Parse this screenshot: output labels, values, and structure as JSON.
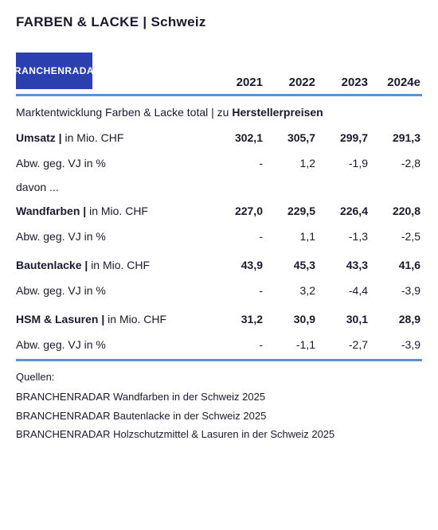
{
  "title": "FARBEN & LACKE | Schweiz",
  "logo_text": "BRANCHENRADAR",
  "years": [
    "2021",
    "2022",
    "2023",
    "2024e"
  ],
  "subtitle_pre": "Marktentwicklung Farben & Lacke total | zu ",
  "subtitle_emph": "Herstellerpreisen",
  "abw_label": "Abw. geg. VJ in %",
  "davon": "davon ...",
  "rule_color": "#5b8fd6",
  "logo_bg": "#2b3fb0",
  "sections": [
    {
      "label_strong": "Umsatz | ",
      "label_unit": "in Mio. CHF",
      "values": [
        "302,1",
        "305,7",
        "299,7",
        "291,3"
      ],
      "delta": [
        "-",
        "1,2",
        "-1,9",
        "-2,8"
      ]
    },
    {
      "label_strong": "Wandfarben | ",
      "label_unit": "in Mio. CHF",
      "values": [
        "227,0",
        "229,5",
        "226,4",
        "220,8"
      ],
      "delta": [
        "-",
        "1,1",
        "-1,3",
        "-2,5"
      ]
    },
    {
      "label_strong": "Bautenlacke | ",
      "label_unit": "in Mio. CHF",
      "values": [
        "43,9",
        "45,3",
        "43,3",
        "41,6"
      ],
      "delta": [
        "-",
        "3,2",
        "-4,4",
        "-3,9"
      ]
    },
    {
      "label_strong": "HSM & Lasuren | ",
      "label_unit": "in Mio. CHF",
      "values": [
        "31,2",
        "30,9",
        "30,1",
        "28,9"
      ],
      "delta": [
        "-",
        "-1,1",
        "-2,7",
        "-3,9"
      ]
    }
  ],
  "sources_title": "Quellen:",
  "sources": [
    "BRANCHENRADAR Wandfarben in der Schweiz 2025",
    "BRANCHENRADAR Bautenlacke in der Schweiz 2025",
    "BRANCHENRADAR Holzschutzmittel & Lasuren in der Schweiz 2025"
  ]
}
